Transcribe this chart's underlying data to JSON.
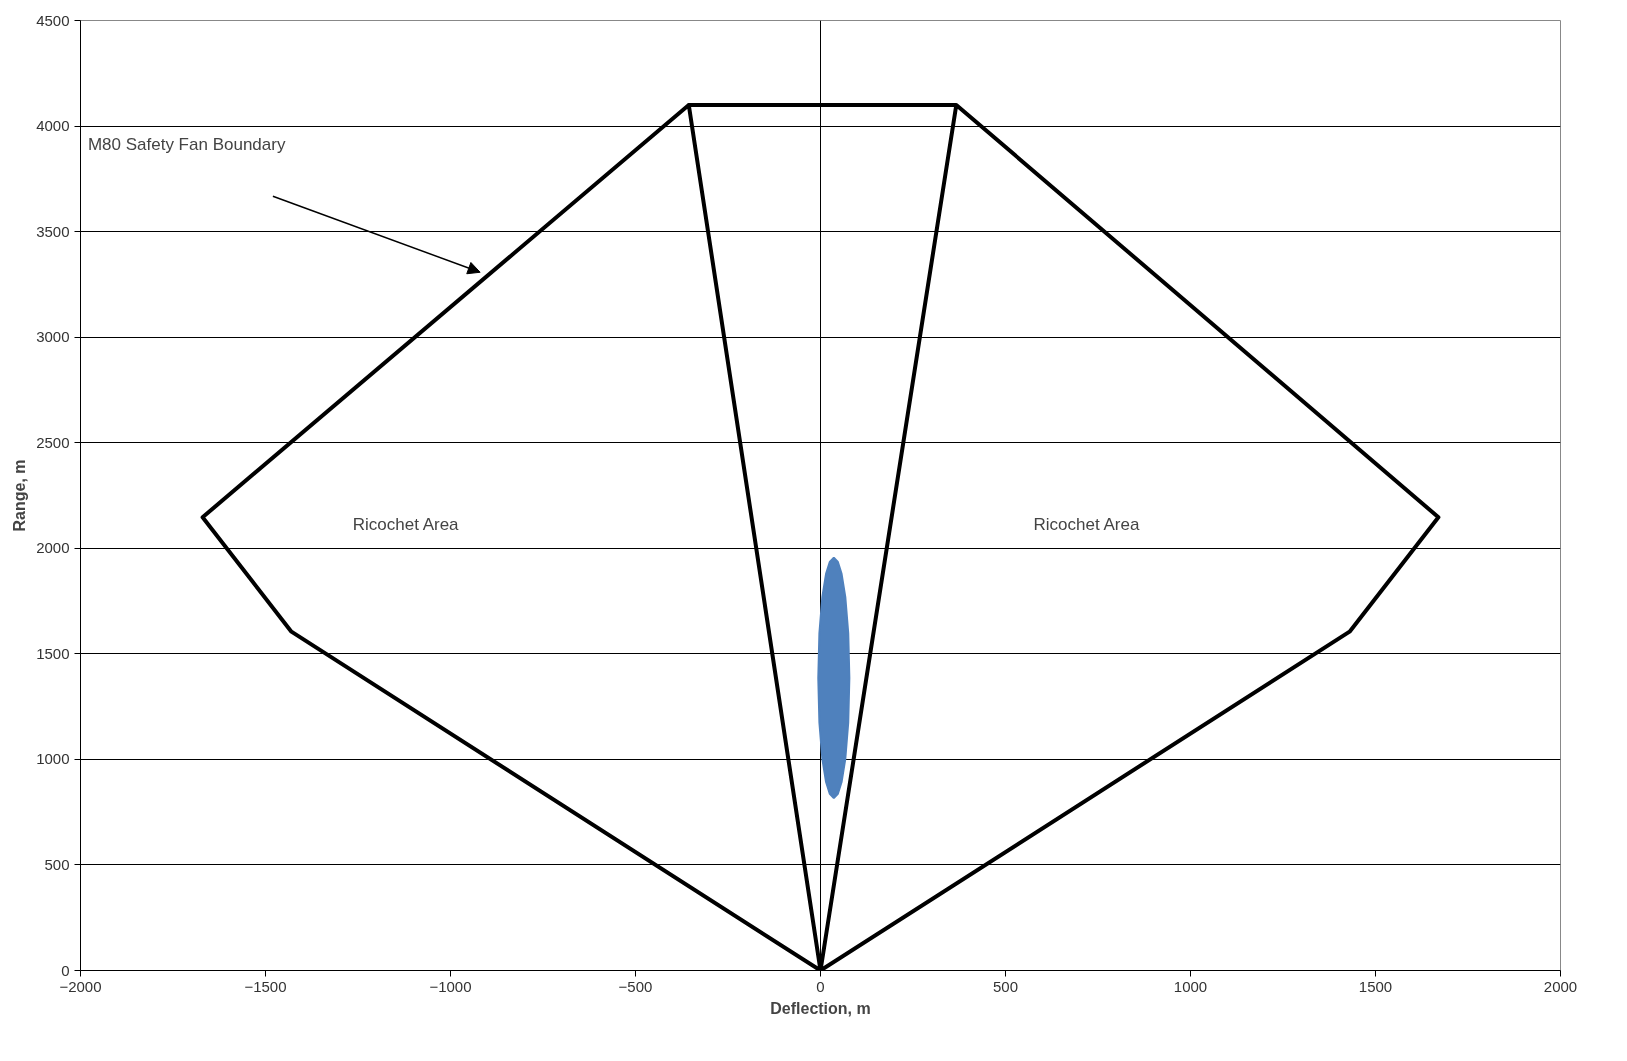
{
  "chart_data": {
    "type": "line",
    "xlabel": "Deflection, m",
    "ylabel": "Range, m",
    "xlim": [
      -2000,
      2000
    ],
    "xticks": [
      -2000,
      -1500,
      -1000,
      -500,
      0,
      500,
      1000,
      1500,
      2000
    ],
    "ylim": [
      0,
      4500
    ],
    "yticks": [
      0,
      500,
      1000,
      1500,
      2000,
      2500,
      3000,
      3500,
      4000,
      4500
    ],
    "grid": "y",
    "marker": "none",
    "line_style": "solid",
    "series": [
      {
        "color": "#000000",
        "x": [
          -356,
          -1670,
          -1430,
          0,
          -356,
          367,
          1670,
          1430,
          0,
          367
        ],
        "values": [
          4100,
          2147,
          1605,
          0,
          4100,
          4100,
          2147,
          1605,
          0,
          4100
        ]
      },
      {
        "type": "area",
        "color": "#4f81bd",
        "x": [
          -6,
          -3,
          5,
          15,
          25,
          36,
          47,
          57,
          67,
          75,
          78,
          75,
          67,
          57,
          47,
          36,
          25,
          15,
          5,
          -3
        ],
        "values": [
          1386,
          1597,
          1770,
          1879,
          1935,
          1955,
          1935,
          1879,
          1770,
          1597,
          1386,
          1175,
          1002,
          893,
          837,
          817,
          837,
          893,
          1002,
          1175
        ]
      }
    ],
    "ref_lines": [
      {
        "axis": "x",
        "value": 0,
        "color": "#000000"
      }
    ],
    "annotations": [
      "M80 Safety Fan Boundary",
      "Ricochet Area",
      "Ricochet Area"
    ]
  }
}
